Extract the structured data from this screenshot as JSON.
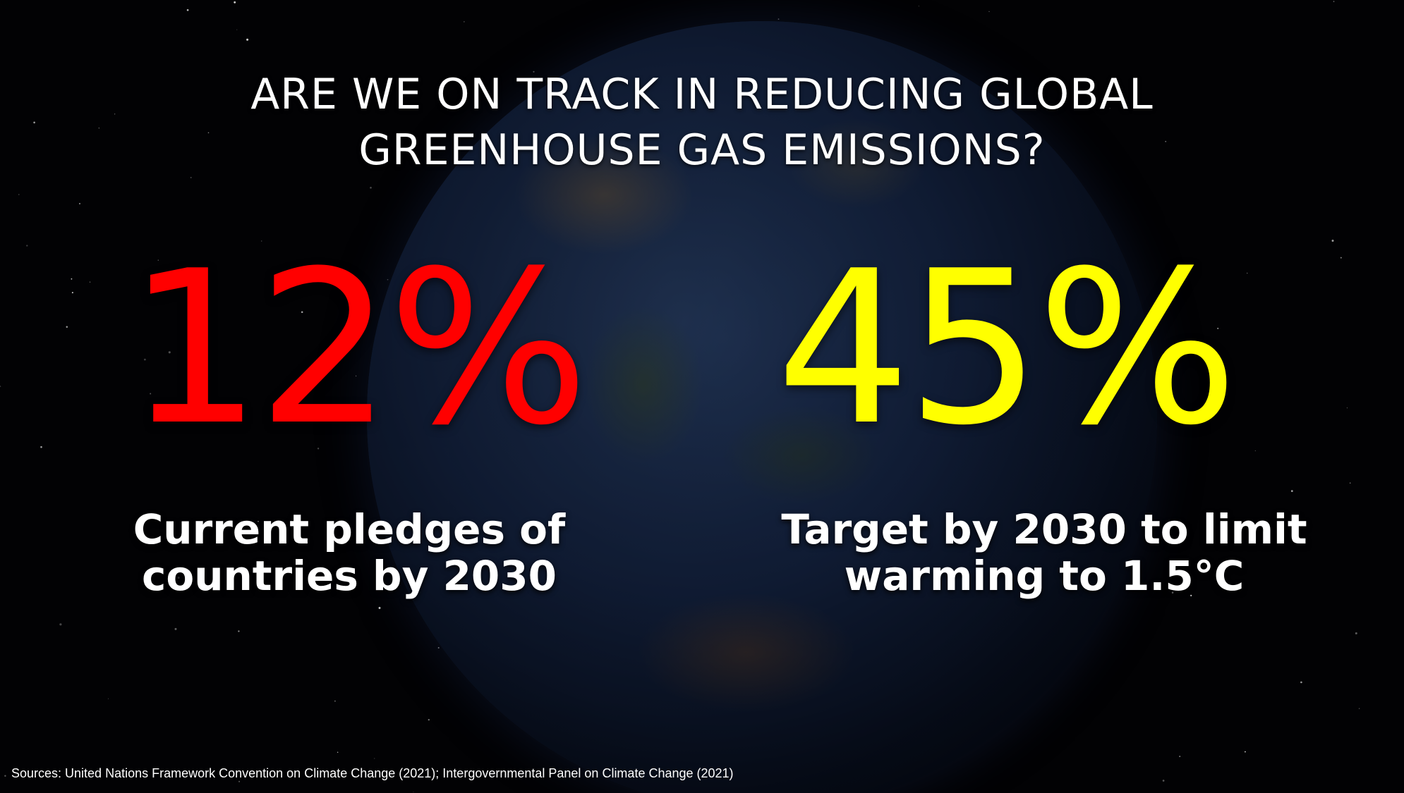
{
  "slide": {
    "title_line1": "ARE WE ON TRACK IN REDUCING GLOBAL",
    "title_line2": "GREENHOUSE GAS EMISSIONS?",
    "stats": [
      {
        "value": "12%",
        "caption_line1": "Current pledges of",
        "caption_line2": "countries by 2030",
        "color": "#ff0000"
      },
      {
        "value": "45%",
        "caption_line1": "Target by 2030 to limit",
        "caption_line2": "warming to 1.5°C",
        "color": "#ffff00"
      }
    ],
    "source": "Sources: United Nations Framework Convention on Climate Change (2021); Intergovernmental Panel on Climate Change (2021)"
  },
  "colors": {
    "background": "#020204",
    "text": "#ffffff"
  }
}
